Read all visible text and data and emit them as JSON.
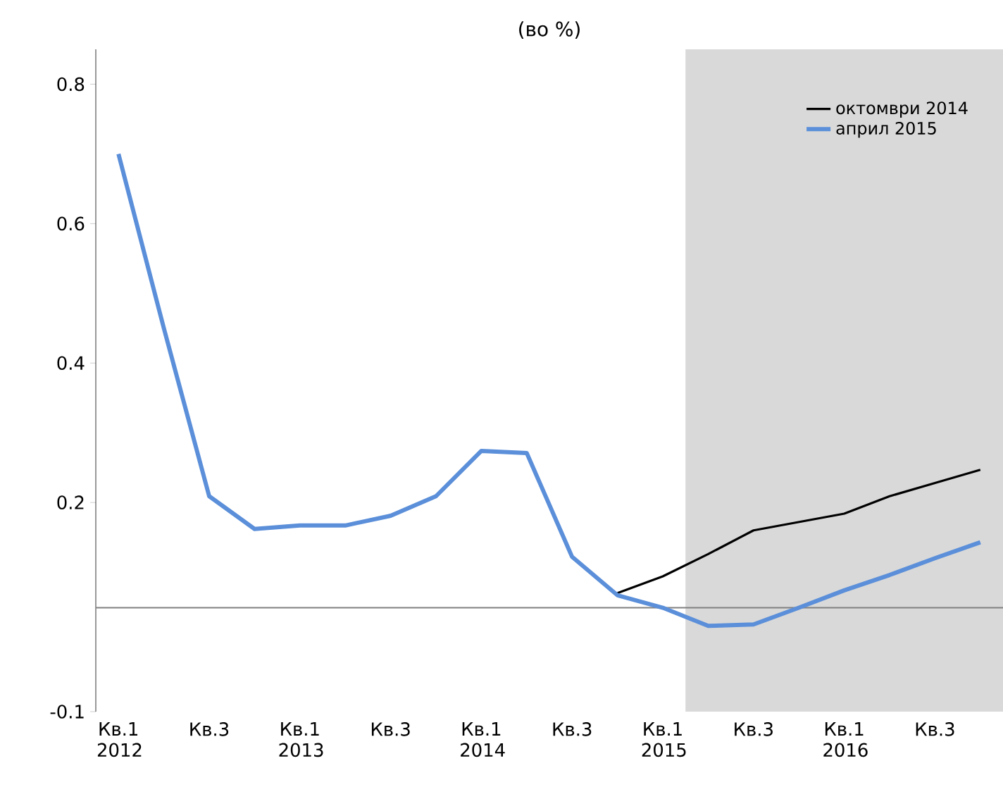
{
  "chart_data": {
    "type": "line",
    "title": "(во %)",
    "categories": [
      "Кв.1 2012",
      null,
      "Кв.3",
      null,
      "Кв.1 2013",
      null,
      "Кв.3",
      null,
      "Кв.1 2014",
      null,
      "Кв.3",
      null,
      "Кв.1 2015",
      null,
      "Кв.3",
      null,
      "Кв.1 2016",
      null,
      "Кв.3",
      null
    ],
    "series": [
      {
        "name": "октомври 2014",
        "color": "#000000",
        "values": [
          null,
          null,
          null,
          null,
          null,
          null,
          null,
          null,
          null,
          null,
          null,
          0.07,
          0.094,
          0.126,
          0.16,
          0.172,
          0.184,
          0.209,
          0.228,
          0.247
        ]
      },
      {
        "name": "април 2015",
        "color": "#5b8fd9",
        "values": [
          0.7,
          0.45,
          0.209,
          0.162,
          0.167,
          0.167,
          0.181,
          0.209,
          0.274,
          0.271,
          0.122,
          0.067,
          0.049,
          0.023,
          0.025,
          0.049,
          0.074,
          0.096,
          0.12,
          0.143
        ]
      }
    ],
    "ylim": [
      -0.1,
      0.85
    ],
    "yticks": [
      -0.1,
      0.2,
      0.4,
      0.6,
      0.8
    ],
    "ref_lines": [
      {
        "axis": "y",
        "value": 0.049,
        "color": "#808080"
      }
    ],
    "legend": "top right",
    "grid": false,
    "marker": "none",
    "line_style": "solid"
  }
}
